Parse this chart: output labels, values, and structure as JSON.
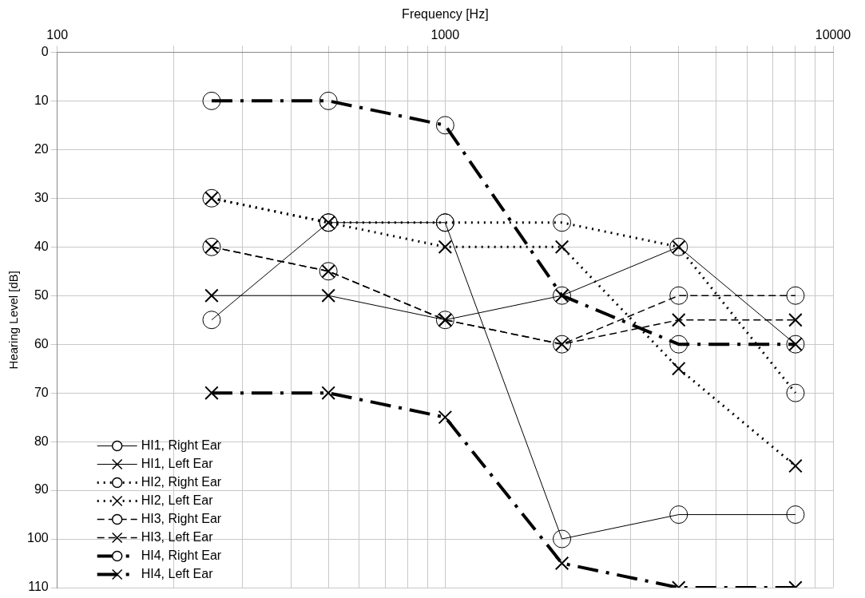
{
  "chart_data": {
    "type": "line",
    "xlabel": "Frequency [Hz]",
    "ylabel": "Hearing Level [dB]",
    "log": "x",
    "grid": true,
    "legend": "bottom left",
    "x": [
      250,
      500,
      1000,
      2000,
      4000,
      8000
    ],
    "xlim": [
      100,
      10000
    ],
    "xticks": [
      100,
      {
        "value": 200,
        "label": null
      },
      {
        "value": 300,
        "label": null
      },
      {
        "value": 400,
        "label": null
      },
      {
        "value": 500,
        "label": null
      },
      {
        "value": 600,
        "label": null
      },
      {
        "value": 700,
        "label": null
      },
      {
        "value": 800,
        "label": null
      },
      {
        "value": 900,
        "label": null
      },
      1000,
      {
        "value": 2000,
        "label": null
      },
      {
        "value": 3000,
        "label": null
      },
      {
        "value": 4000,
        "label": null
      },
      {
        "value": 5000,
        "label": null
      },
      {
        "value": 6000,
        "label": null
      },
      {
        "value": 7000,
        "label": null
      },
      {
        "value": 8000,
        "label": null
      },
      {
        "value": 9000,
        "label": null
      },
      10000
    ],
    "ylim": [
      110,
      0
    ],
    "yticks": [
      0,
      10,
      20,
      30,
      40,
      50,
      60,
      70,
      80,
      90,
      100,
      110
    ],
    "series": [
      {
        "name": "HI1, Right Ear",
        "color": "#000000",
        "marker": "circle",
        "line_style": "solid",
        "values": [
          55,
          35,
          35,
          100,
          95,
          95
        ]
      },
      {
        "name": "HI1, Left Ear",
        "color": "#000000",
        "marker": "cross",
        "line_style": "solid",
        "values": [
          50,
          50,
          55,
          50,
          40,
          60
        ]
      },
      {
        "name": "HI2, Right Ear",
        "color": "#000000",
        "marker": "circle",
        "line_style": "dotted",
        "values": [
          30,
          35,
          35,
          35,
          40,
          70
        ]
      },
      {
        "name": "HI2, Left Ear",
        "color": "#000000",
        "marker": "cross",
        "line_style": "dotted",
        "values": [
          30,
          35,
          40,
          40,
          65,
          85
        ]
      },
      {
        "name": "HI3, Right Ear",
        "color": "#000000",
        "marker": "circle",
        "line_style": "dashed",
        "values": [
          40,
          45,
          55,
          60,
          50,
          50
        ]
      },
      {
        "name": "HI3, Left Ear",
        "color": "#000000",
        "marker": "cross",
        "line_style": "dashed",
        "values": [
          40,
          45,
          55,
          60,
          55,
          55
        ]
      },
      {
        "name": "HI4, Right Ear",
        "color": "#000000",
        "marker": "circle",
        "line_style": "dashdot",
        "values": [
          10,
          10,
          15,
          50,
          60,
          60
        ]
      },
      {
        "name": "HI4, Left Ear",
        "color": "#000000",
        "marker": "cross",
        "line_style": "dashdot",
        "values": [
          70,
          70,
          75,
          105,
          110,
          110
        ]
      }
    ]
  }
}
